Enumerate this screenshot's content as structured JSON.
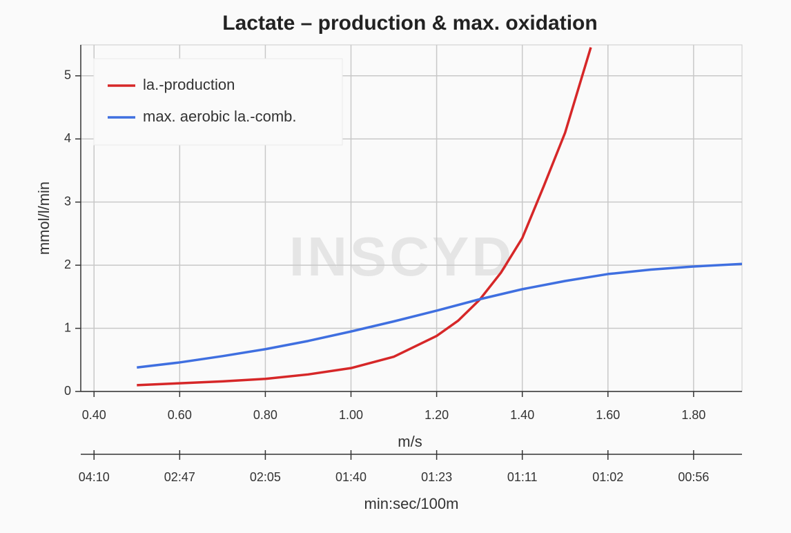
{
  "chart_data": {
    "type": "line",
    "title": "Lactate – production & max. oxidation",
    "xlabel": "m/s",
    "ylabel": "mmol/l/min",
    "x2label": "min:sec/100m",
    "watermark": "INSCYD",
    "xlim": [
      0.369,
      1.913
    ],
    "ylim": [
      0,
      5.49
    ],
    "xticks": [
      {
        "value": 0.4,
        "label": "0.40"
      },
      {
        "value": 0.6,
        "label": "0.60"
      },
      {
        "value": 0.8,
        "label": "0.80"
      },
      {
        "value": 1.0,
        "label": "1.00"
      },
      {
        "value": 1.2,
        "label": "1.20"
      },
      {
        "value": 1.4,
        "label": "1.40"
      },
      {
        "value": 1.6,
        "label": "1.60"
      },
      {
        "value": 1.8,
        "label": "1.80"
      }
    ],
    "x2ticks": [
      {
        "value": 0.4,
        "label": "04:10"
      },
      {
        "value": 0.6,
        "label": "02:47"
      },
      {
        "value": 0.8,
        "label": "02:05"
      },
      {
        "value": 1.0,
        "label": "01:40"
      },
      {
        "value": 1.2,
        "label": "01:23"
      },
      {
        "value": 1.4,
        "label": "01:11"
      },
      {
        "value": 1.6,
        "label": "01:02"
      },
      {
        "value": 1.8,
        "label": "00:56"
      }
    ],
    "yticks": [
      0,
      1,
      2,
      3,
      4,
      5
    ],
    "grid": true,
    "legend": "upper-left",
    "series": [
      {
        "name": "la.-production",
        "color": "#d62728",
        "x": [
          0.5,
          0.6,
          0.7,
          0.8,
          0.9,
          1.0,
          1.1,
          1.2,
          1.25,
          1.3,
          1.35,
          1.4,
          1.45,
          1.5,
          1.56
        ],
        "values": [
          0.1,
          0.13,
          0.16,
          0.2,
          0.27,
          0.37,
          0.55,
          0.88,
          1.12,
          1.45,
          1.88,
          2.43,
          3.25,
          4.1,
          5.45
        ]
      },
      {
        "name": "max. aerobic la.-comb.",
        "color": "#3f6fe0",
        "x": [
          0.5,
          0.6,
          0.7,
          0.8,
          0.9,
          1.0,
          1.1,
          1.2,
          1.3,
          1.4,
          1.5,
          1.6,
          1.7,
          1.8,
          1.913
        ],
        "values": [
          0.38,
          0.46,
          0.56,
          0.67,
          0.8,
          0.95,
          1.11,
          1.28,
          1.46,
          1.62,
          1.75,
          1.86,
          1.93,
          1.98,
          2.02
        ]
      }
    ]
  }
}
